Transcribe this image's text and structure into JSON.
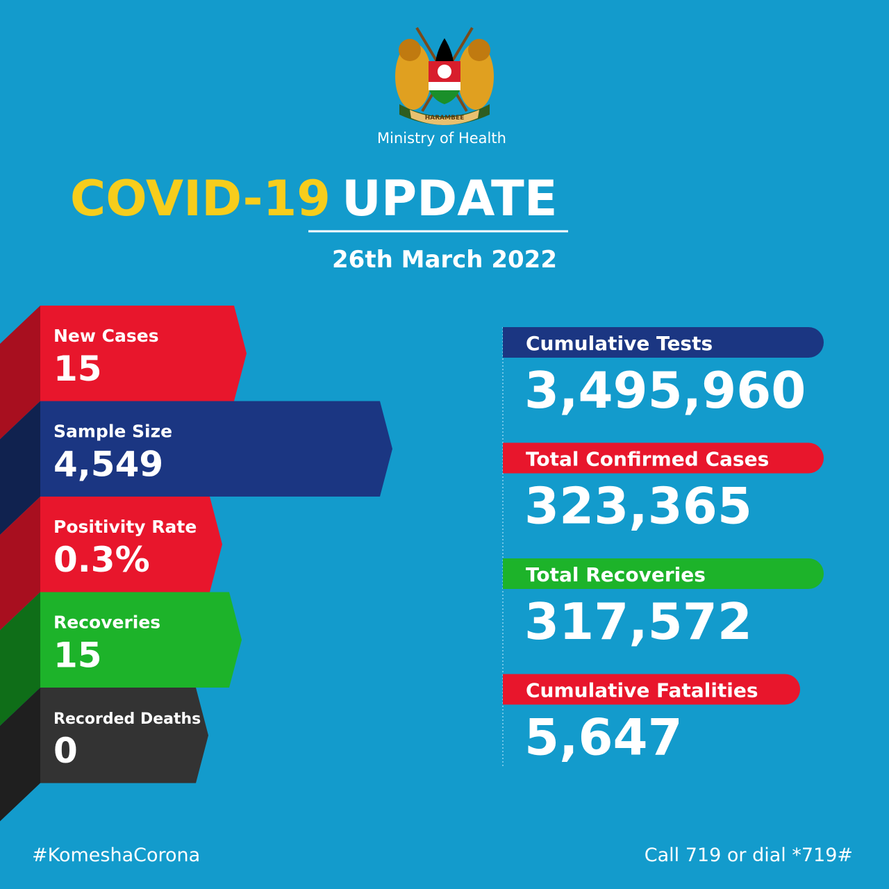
{
  "header": {
    "emblem_motto": "HARAMBEE",
    "ministry": "Ministry of Health",
    "title_highlight": "COVID-19",
    "title_rest": "UPDATE",
    "date": "26th March 2022"
  },
  "daily": [
    {
      "label": "New Cases",
      "value": "15"
    },
    {
      "label": "Sample Size",
      "value": "4,549"
    },
    {
      "label": "Positivity Rate",
      "value": "0.3%"
    },
    {
      "label": "Recoveries",
      "value": "15"
    },
    {
      "label": "Recorded Deaths",
      "value": "0"
    }
  ],
  "cumulative": [
    {
      "label": "Cumulative Tests",
      "value": "3,495,960"
    },
    {
      "label": "Total Confirmed Cases",
      "value": "323,365"
    },
    {
      "label": "Total Recoveries",
      "value": "317,572"
    },
    {
      "label": "Cumulative Fatalities",
      "value": "5,647"
    }
  ],
  "footer": {
    "hashtag": "#KomeshaCorona",
    "hotline": "Call 719 or dial *719#"
  }
}
